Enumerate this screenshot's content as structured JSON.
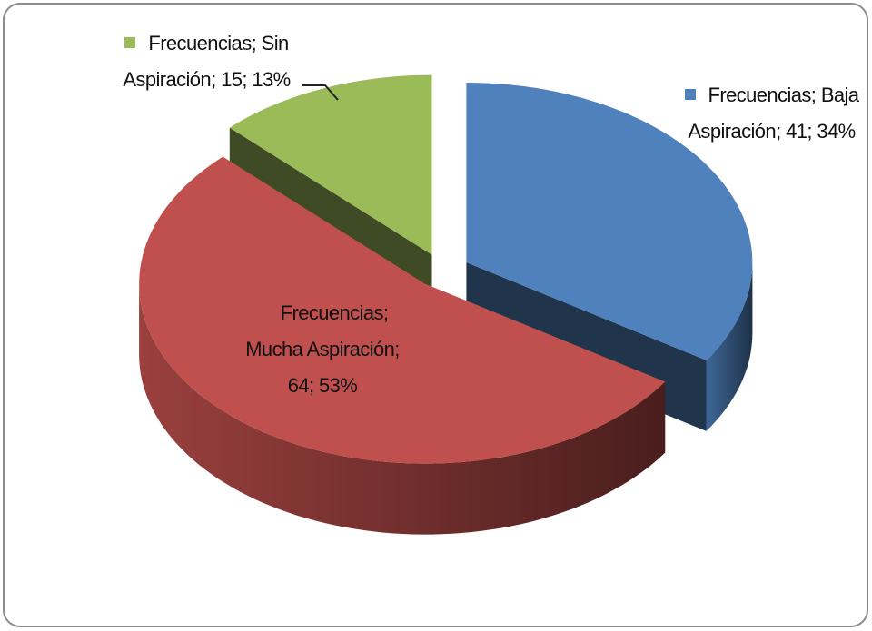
{
  "chart_data": {
    "type": "pie",
    "three_d": true,
    "series_name": "Frecuencias",
    "separator": "; ",
    "categories": [
      "Baja Aspiración",
      "Mucha Aspiración",
      "Sin Aspiración"
    ],
    "values": [
      41,
      64,
      15
    ],
    "percent_labels": [
      "34%",
      "53%",
      "13%"
    ],
    "colors": [
      "#4f81bd",
      "#c0504d",
      "#9bbb59"
    ]
  }
}
